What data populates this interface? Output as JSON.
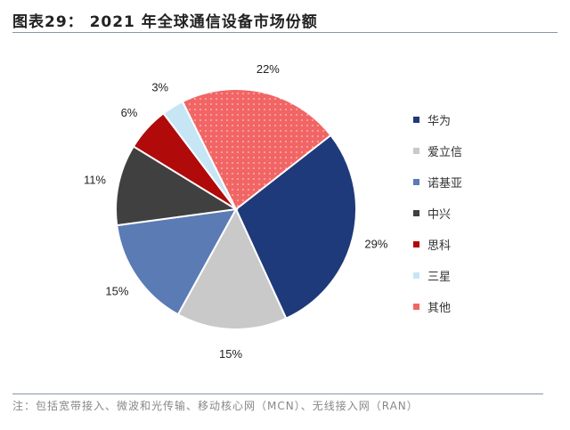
{
  "title": "图表29：  2021 年全球通信设备市场份额",
  "note": "注：包括宽带接入、微波和光传输、移动核心网（MCN）、无线接入网（RAN）",
  "chart_data": {
    "type": "pie",
    "title": "图表29：  2021 年全球通信设备市场份额",
    "legend_position": "right",
    "categories": [
      "华为",
      "爱立信",
      "诺基亚",
      "中兴",
      "思科",
      "三星",
      "其他"
    ],
    "values": [
      29,
      15,
      15,
      11,
      6,
      3,
      22
    ],
    "labels": [
      "29%",
      "15%",
      "15%",
      "11%",
      "6%",
      "3%",
      "22%"
    ],
    "colors": [
      "#1f3a7a",
      "#c9c9c9",
      "#5b7bb5",
      "#404040",
      "#b00a0a",
      "#c6e6f6",
      "#f26565"
    ]
  }
}
